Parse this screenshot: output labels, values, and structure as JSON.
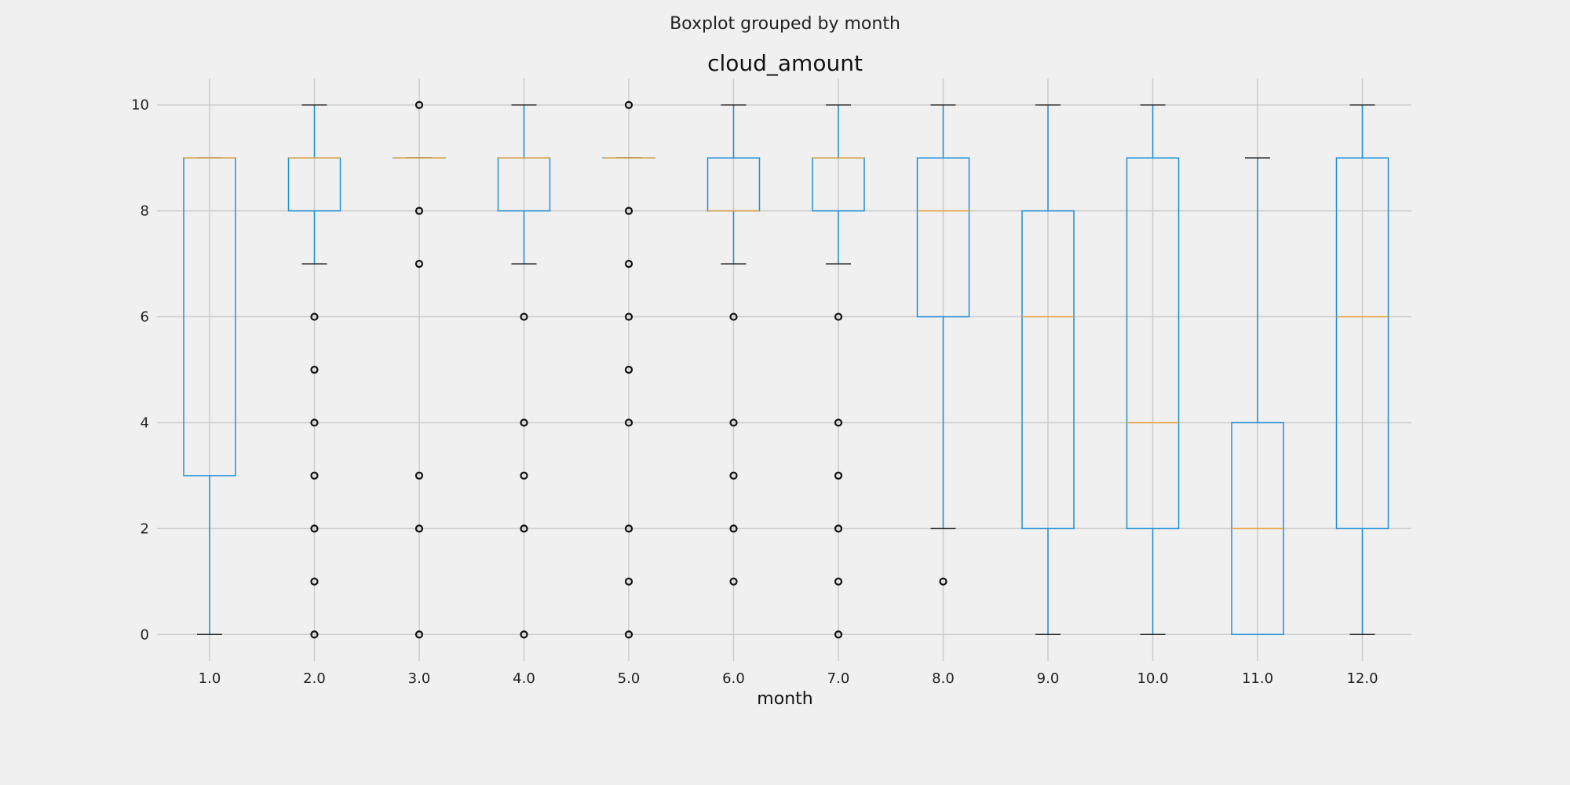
{
  "suptitle": "Boxplot grouped by month",
  "chart_data": {
    "type": "boxplot",
    "title": "cloud_amount",
    "xlabel": "month",
    "ylabel": "",
    "ylim": [
      -0.5,
      10.5
    ],
    "yticks": [
      0,
      2,
      4,
      6,
      8,
      10
    ],
    "grid": true,
    "categories": [
      "1.0",
      "2.0",
      "3.0",
      "4.0",
      "5.0",
      "6.0",
      "7.0",
      "8.0",
      "9.0",
      "10.0",
      "11.0",
      "12.0"
    ],
    "boxes": [
      {
        "whisker_low": 0,
        "q1": 3,
        "median": 9,
        "q3": 9,
        "whisker_high": 9,
        "outliers": []
      },
      {
        "whisker_low": 7,
        "q1": 8,
        "median": 9,
        "q3": 9,
        "whisker_high": 10,
        "outliers": [
          0,
          1,
          2,
          3,
          4,
          5,
          6
        ]
      },
      {
        "whisker_low": 9,
        "q1": 9,
        "median": 9,
        "q3": 9,
        "whisker_high": 9,
        "outliers": [
          0,
          2,
          3,
          7,
          8,
          10
        ]
      },
      {
        "whisker_low": 7,
        "q1": 8,
        "median": 9,
        "q3": 9,
        "whisker_high": 10,
        "outliers": [
          0,
          2,
          3,
          4,
          6
        ]
      },
      {
        "whisker_low": 9,
        "q1": 9,
        "median": 9,
        "q3": 9,
        "whisker_high": 9,
        "outliers": [
          0,
          1,
          2,
          4,
          5,
          6,
          7,
          8,
          10
        ]
      },
      {
        "whisker_low": 7,
        "q1": 8,
        "median": 8,
        "q3": 9,
        "whisker_high": 10,
        "outliers": [
          1,
          2,
          3,
          4,
          6
        ]
      },
      {
        "whisker_low": 7,
        "q1": 8,
        "median": 9,
        "q3": 9,
        "whisker_high": 10,
        "outliers": [
          0,
          1,
          2,
          3,
          4,
          6
        ]
      },
      {
        "whisker_low": 2,
        "q1": 6,
        "median": 8,
        "q3": 9,
        "whisker_high": 10,
        "outliers": [
          1
        ]
      },
      {
        "whisker_low": 0,
        "q1": 2,
        "median": 6,
        "q3": 8,
        "whisker_high": 10,
        "outliers": []
      },
      {
        "whisker_low": 0,
        "q1": 2,
        "median": 4,
        "q3": 9,
        "whisker_high": 10,
        "outliers": []
      },
      {
        "whisker_low": 0,
        "q1": 0,
        "median": 2,
        "q3": 4,
        "whisker_high": 9,
        "outliers": []
      },
      {
        "whisker_low": 0,
        "q1": 2,
        "median": 6,
        "q3": 9,
        "whisker_high": 10,
        "outliers": []
      }
    ],
    "colors": {
      "box": "#1f8fd6",
      "median": "#e8a33c",
      "whisker_cap": "#222222",
      "outlier": "#111111",
      "grid": "#cbcbcb",
      "background": "#f0f0f0"
    }
  }
}
